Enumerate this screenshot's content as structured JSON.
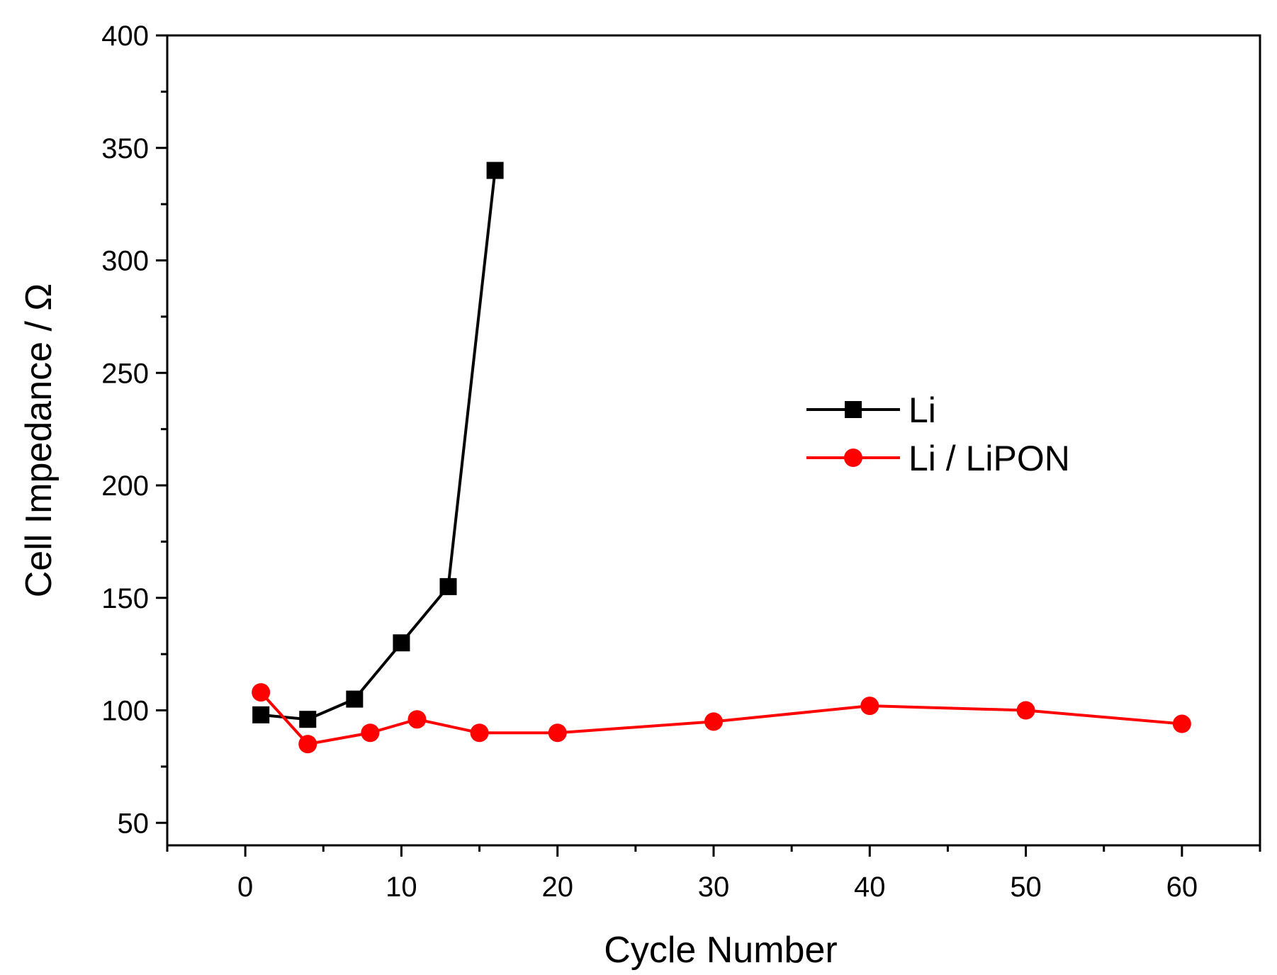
{
  "chart_data": {
    "type": "line",
    "title": "",
    "xlabel": "Cycle Number",
    "ylabel": "Cell Impedance / Ω",
    "xlim": [
      -5,
      65
    ],
    "ylim": [
      40,
      400
    ],
    "x_ticks": [
      0,
      10,
      20,
      30,
      40,
      50,
      60
    ],
    "x_tick_labels": [
      "0",
      "10",
      "20",
      "30",
      "40",
      "50",
      "60"
    ],
    "y_ticks": [
      50,
      100,
      150,
      200,
      250,
      300,
      350,
      400
    ],
    "y_tick_labels": [
      "50",
      "100",
      "150",
      "200",
      "250",
      "300",
      "350",
      "400"
    ],
    "grid": false,
    "legend_position": "right-center",
    "series": [
      {
        "name": "Li",
        "marker": "square",
        "color": "#000000",
        "x": [
          1,
          4,
          7,
          10,
          13,
          16
        ],
        "y": [
          98,
          96,
          105,
          130,
          155,
          340
        ]
      },
      {
        "name": "Li / LiPON",
        "marker": "circle",
        "color": "#ff0000",
        "x": [
          1,
          4,
          8,
          11,
          15,
          20,
          30,
          40,
          50,
          60
        ],
        "y": [
          108,
          85,
          90,
          96,
          90,
          90,
          95,
          102,
          100,
          94
        ]
      }
    ]
  }
}
